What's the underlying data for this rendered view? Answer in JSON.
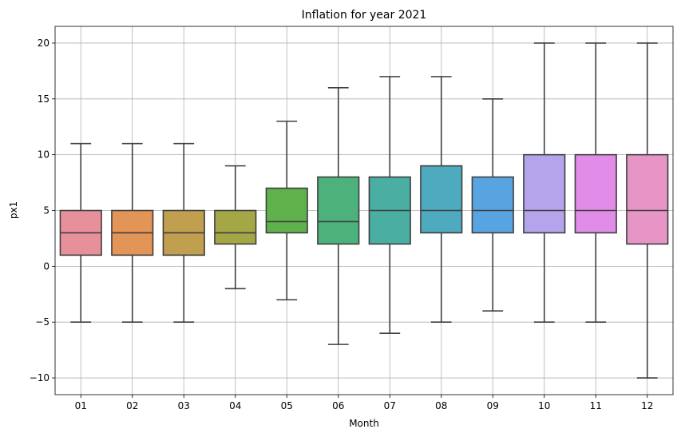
{
  "chart_data": {
    "type": "box",
    "title": "Inflation for year 2021",
    "xlabel": "Month",
    "ylabel": "px1",
    "categories": [
      "01",
      "02",
      "03",
      "04",
      "05",
      "06",
      "07",
      "08",
      "09",
      "10",
      "11",
      "12"
    ],
    "boxes": [
      {
        "category": "01",
        "whisker_low": -5,
        "q1": 1,
        "median": 3,
        "q3": 5,
        "whisker_high": 11,
        "color": "#e8909a"
      },
      {
        "category": "02",
        "whisker_low": -5,
        "q1": 1,
        "median": 3,
        "q3": 5,
        "whisker_high": 11,
        "color": "#e39457"
      },
      {
        "category": "03",
        "whisker_low": -5,
        "q1": 1,
        "median": 3,
        "q3": 5,
        "whisker_high": 11,
        "color": "#c09f4e"
      },
      {
        "category": "04",
        "whisker_low": -2,
        "q1": 2,
        "median": 3,
        "q3": 5,
        "whisker_high": 9,
        "color": "#a5a746"
      },
      {
        "category": "05",
        "whisker_low": -3,
        "q1": 3,
        "median": 4,
        "q3": 7,
        "whisker_high": 13,
        "color": "#5fb24b"
      },
      {
        "category": "06",
        "whisker_low": -7,
        "q1": 2,
        "median": 4,
        "q3": 8,
        "whisker_high": 16,
        "color": "#4cb17b"
      },
      {
        "category": "07",
        "whisker_low": -6,
        "q1": 2,
        "median": 5,
        "q3": 8,
        "whisker_high": 17,
        "color": "#4aaea2"
      },
      {
        "category": "08",
        "whisker_low": -5,
        "q1": 3,
        "median": 5,
        "q3": 9,
        "whisker_high": 17,
        "color": "#4daabf"
      },
      {
        "category": "09",
        "whisker_low": -4,
        "q1": 3,
        "median": 5,
        "q3": 8,
        "whisker_high": 15,
        "color": "#58a4e0"
      },
      {
        "category": "10",
        "whisker_low": -5,
        "q1": 3,
        "median": 5,
        "q3": 10,
        "whisker_high": 20,
        "color": "#b3a4ec"
      },
      {
        "category": "11",
        "whisker_low": -5,
        "q1": 3,
        "median": 5,
        "q3": 10,
        "whisker_high": 20,
        "color": "#e08ce8"
      },
      {
        "category": "12",
        "whisker_low": -10,
        "q1": 2,
        "median": 5,
        "q3": 10,
        "whisker_high": 20,
        "color": "#e695c6"
      }
    ],
    "yticks": [
      -10,
      -5,
      0,
      5,
      10,
      15,
      20
    ],
    "ylim": [
      -11.5,
      21.5
    ],
    "grid": true
  }
}
